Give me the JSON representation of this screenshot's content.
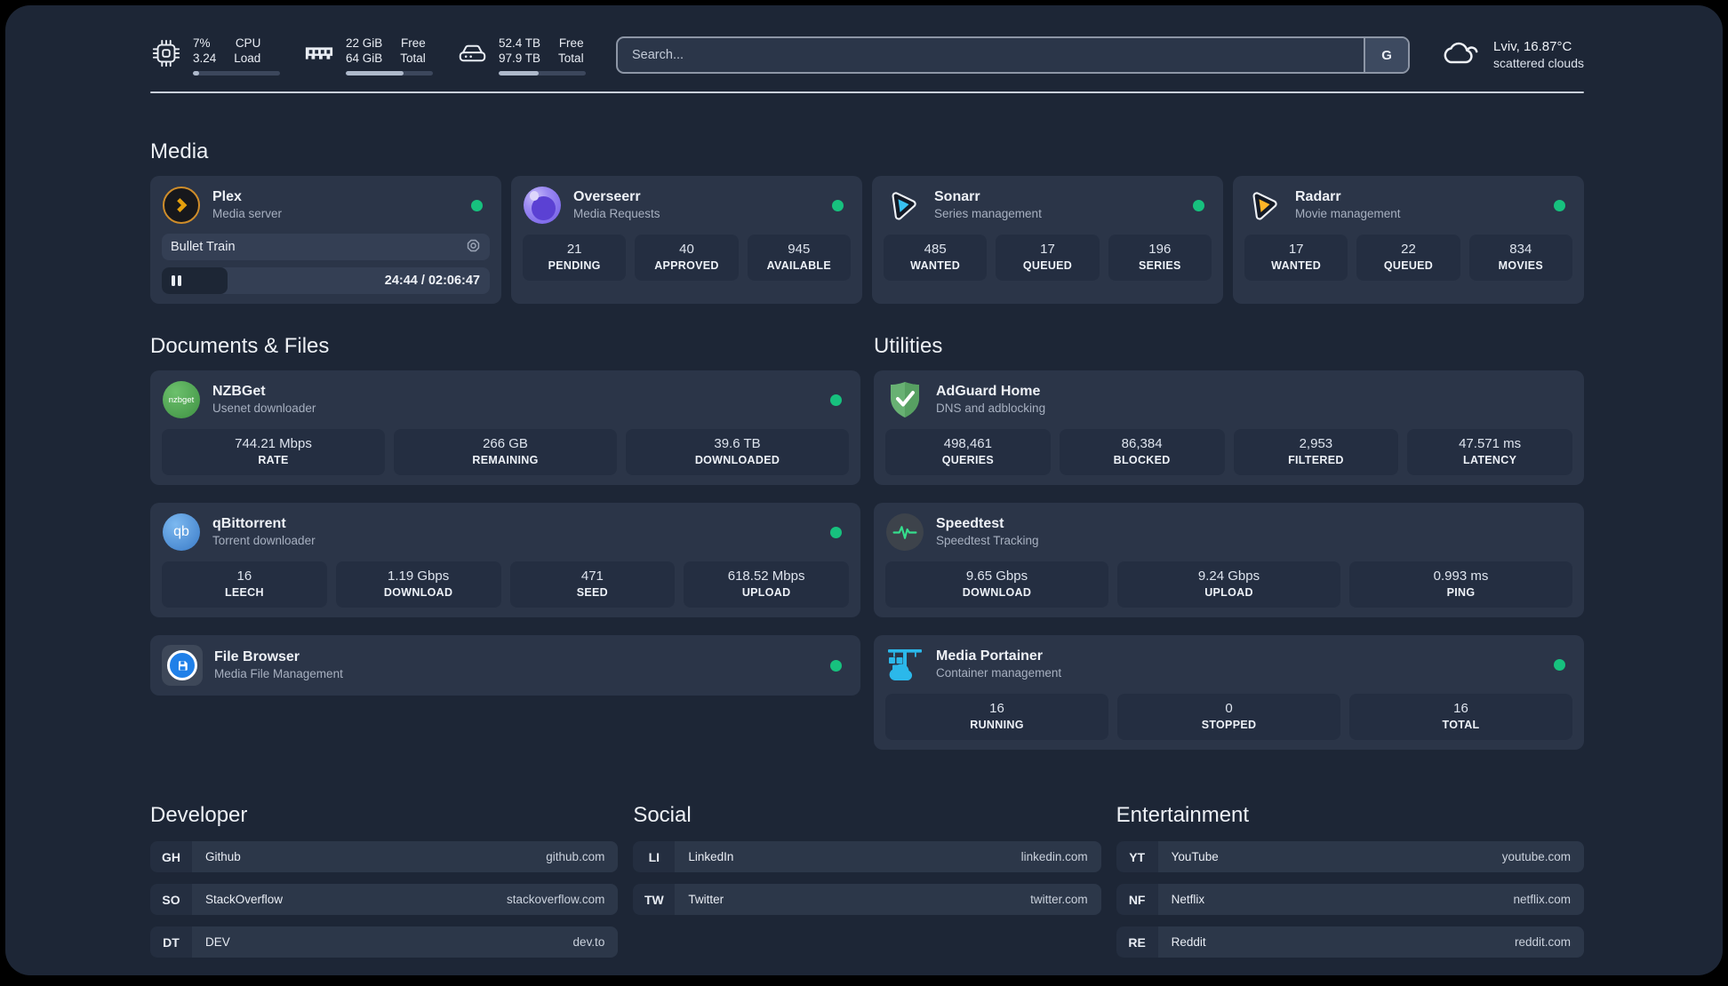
{
  "header": {
    "metrics": [
      {
        "name": "cpu",
        "line1_value": "7%",
        "line2_value": "3.24",
        "line1_label": "CPU",
        "line2_label": "Load",
        "progress_pct": 7
      },
      {
        "name": "ram",
        "line1_value": "22 GiB",
        "line2_value": "64 GiB",
        "line1_label": "Free",
        "line2_label": "Total",
        "progress_pct": 66
      },
      {
        "name": "disk",
        "line1_value": "52.4 TB",
        "line2_value": "97.9 TB",
        "line1_label": "Free",
        "line2_label": "Total",
        "progress_pct": 46
      }
    ],
    "search": {
      "placeholder": "Search...",
      "provider_button": "G"
    },
    "weather": {
      "location": "Lviv, 16.87°C",
      "condition": "scattered clouds"
    }
  },
  "sections": {
    "media": {
      "title": "Media",
      "cards": [
        {
          "name": "Plex",
          "subtitle": "Media server",
          "online": true,
          "now_playing": {
            "title": "Bullet Train",
            "time_display": "24:44 / 02:06:47",
            "progress_pct": 20
          }
        },
        {
          "name": "Overseerr",
          "subtitle": "Media Requests",
          "online": true,
          "stats": [
            {
              "value": "21",
              "label": "PENDING"
            },
            {
              "value": "40",
              "label": "APPROVED"
            },
            {
              "value": "945",
              "label": "AVAILABLE"
            }
          ]
        },
        {
          "name": "Sonarr",
          "subtitle": "Series management",
          "online": true,
          "stats": [
            {
              "value": "485",
              "label": "WANTED"
            },
            {
              "value": "17",
              "label": "QUEUED"
            },
            {
              "value": "196",
              "label": "SERIES"
            }
          ]
        },
        {
          "name": "Radarr",
          "subtitle": "Movie management",
          "online": true,
          "stats": [
            {
              "value": "17",
              "label": "WANTED"
            },
            {
              "value": "22",
              "label": "QUEUED"
            },
            {
              "value": "834",
              "label": "MOVIES"
            }
          ]
        }
      ]
    },
    "documents": {
      "title": "Documents & Files",
      "cards": [
        {
          "name": "NZBGet",
          "subtitle": "Usenet downloader",
          "online": true,
          "stats": [
            {
              "value": "744.21 Mbps",
              "label": "RATE"
            },
            {
              "value": "266 GB",
              "label": "REMAINING"
            },
            {
              "value": "39.6 TB",
              "label": "DOWNLOADED"
            }
          ]
        },
        {
          "name": "qBittorrent",
          "subtitle": "Torrent downloader",
          "online": true,
          "stats": [
            {
              "value": "16",
              "label": "LEECH"
            },
            {
              "value": "1.19 Gbps",
              "label": "DOWNLOAD"
            },
            {
              "value": "471",
              "label": "SEED"
            },
            {
              "value": "618.52 Mbps",
              "label": "UPLOAD"
            }
          ]
        },
        {
          "name": "File Browser",
          "subtitle": "Media File Management",
          "online": true,
          "stats": []
        }
      ]
    },
    "utilities": {
      "title": "Utilities",
      "cards": [
        {
          "name": "AdGuard Home",
          "subtitle": "DNS and adblocking",
          "online": false,
          "stats": [
            {
              "value": "498,461",
              "label": "QUERIES"
            },
            {
              "value": "86,384",
              "label": "BLOCKED"
            },
            {
              "value": "2,953",
              "label": "FILTERED"
            },
            {
              "value": "47.571 ms",
              "label": "LATENCY"
            }
          ]
        },
        {
          "name": "Speedtest",
          "subtitle": "Speedtest Tracking",
          "online": false,
          "stats": [
            {
              "value": "9.65 Gbps",
              "label": "DOWNLOAD"
            },
            {
              "value": "9.24 Gbps",
              "label": "UPLOAD"
            },
            {
              "value": "0.993 ms",
              "label": "PING"
            }
          ]
        },
        {
          "name": "Media Portainer",
          "subtitle": "Container management",
          "online": true,
          "stats": [
            {
              "value": "16",
              "label": "RUNNING"
            },
            {
              "value": "0",
              "label": "STOPPED"
            },
            {
              "value": "16",
              "label": "TOTAL"
            }
          ]
        }
      ]
    },
    "bookmarks": [
      {
        "title": "Developer",
        "links": [
          {
            "abbr": "GH",
            "name": "Github",
            "url": "github.com"
          },
          {
            "abbr": "SO",
            "name": "StackOverflow",
            "url": "stackoverflow.com"
          },
          {
            "abbr": "DT",
            "name": "DEV",
            "url": "dev.to"
          }
        ]
      },
      {
        "title": "Social",
        "links": [
          {
            "abbr": "LI",
            "name": "LinkedIn",
            "url": "linkedin.com"
          },
          {
            "abbr": "TW",
            "name": "Twitter",
            "url": "twitter.com"
          }
        ]
      },
      {
        "title": "Entertainment",
        "links": [
          {
            "abbr": "YT",
            "name": "YouTube",
            "url": "youtube.com"
          },
          {
            "abbr": "NF",
            "name": "Netflix",
            "url": "netflix.com"
          },
          {
            "abbr": "RE",
            "name": "Reddit",
            "url": "reddit.com"
          }
        ]
      }
    ]
  },
  "icons": {
    "nzbget_text": "nzbget",
    "qbittorrent_text": "qb"
  },
  "colors": {
    "background": "#1d2636",
    "card": "#2b3548",
    "stat_tile": "#242e41",
    "status_online": "#17c17e",
    "plex_amber": "#e5a00d",
    "sonarr_blue": "#38c1f1",
    "radarr_yellow": "#ffb527",
    "portainer_blue": "#2bb8ea"
  }
}
